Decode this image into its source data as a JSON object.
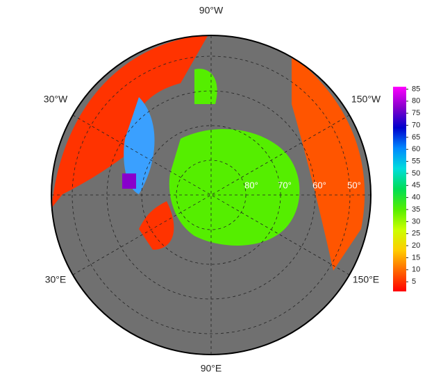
{
  "map": {
    "longitude_labels": [
      "90°W",
      "30°W",
      "150°W",
      "30°E",
      "150°E",
      "90°E"
    ],
    "latitude_labels": [
      "80°",
      "70°",
      "60°",
      "50°"
    ]
  },
  "colorbar": {
    "range": [
      1,
      86
    ],
    "ticks": [
      5,
      10,
      15,
      20,
      25,
      30,
      35,
      40,
      45,
      50,
      55,
      60,
      65,
      70,
      75,
      80,
      85
    ],
    "colors": [
      "#ff0000",
      "#ff6600",
      "#ffcc00",
      "#ccff00",
      "#55ee00",
      "#00dd55",
      "#00dddd",
      "#0088ff",
      "#0000cc",
      "#8800cc",
      "#ff00ff"
    ]
  }
}
